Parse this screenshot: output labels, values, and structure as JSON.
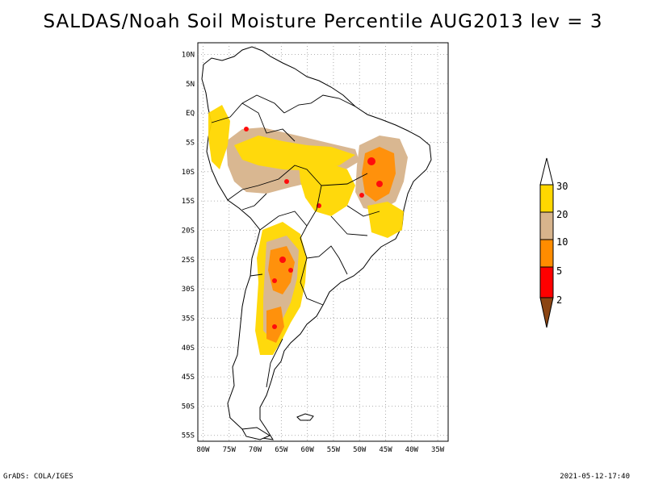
{
  "title": "SALDAS/Noah Soil Moisture Percentile AUG2013 lev = 3",
  "footer": {
    "left": "GrADS: COLA/IGES",
    "right": "2021-05-12-17:40"
  },
  "map": {
    "lon_range": [
      -81,
      -33
    ],
    "lat_range": [
      -56,
      12
    ],
    "lat_ticks": [
      "10N",
      "5N",
      "EQ",
      "5S",
      "10S",
      "15S",
      "20S",
      "25S",
      "30S",
      "35S",
      "40S",
      "45S",
      "50S",
      "55S"
    ],
    "lon_ticks": [
      "80W",
      "75W",
      "70W",
      "65W",
      "60W",
      "55W",
      "50W",
      "45W",
      "40W",
      "35W"
    ]
  },
  "legend": {
    "labels": [
      "30",
      "20",
      "10",
      "5",
      "2"
    ],
    "colors": {
      "above30": "#ffffff",
      "c20_30": "#ffd700",
      "c10_20": "#d7b48c",
      "c5_10": "#ff8c00",
      "c2_5": "#ff0000",
      "below2": "#8b4513"
    }
  },
  "colors": {
    "high_pct": "#ffd700",
    "mid_pct": "#d7b48c",
    "low_pct": "#ff8c00",
    "very_low_pct": "#ff0000"
  }
}
